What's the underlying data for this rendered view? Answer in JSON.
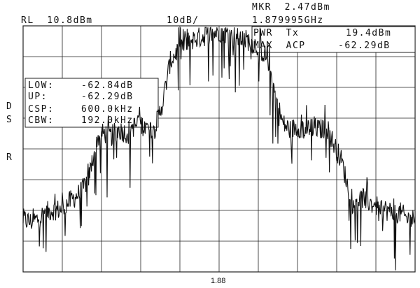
{
  "header": {
    "ref_level": "RL  10.8dBm",
    "scale": "10dB/",
    "marker_amp": "MKR  2.47dBm",
    "marker_freq": "1.879995GHz"
  },
  "panel_right": {
    "pwr_label": "PWR  Tx",
    "pwr_value": "19.4dBm",
    "acp_label": "MAX  ACP",
    "acp_value": "-62.29dB"
  },
  "panel_left": {
    "low_label": "LOW:",
    "low_value": "-62.84dB",
    "up_label": "UP:",
    "up_value": "-62.29dB",
    "csp_label": "CSP:",
    "csp_value": "600.0kHz",
    "cbw_label": "CBW:",
    "cbw_value": "192.0kHz"
  },
  "side_letters": [
    "D",
    "S",
    "R"
  ],
  "colors": {
    "trace": "#111111",
    "grid": "#222222",
    "background": "#ffffff"
  },
  "chart_data": {
    "type": "line",
    "title": "",
    "xlabel": "",
    "ylabel": "",
    "x_center_label": "1.88",
    "x_divisions": 10,
    "y_divisions": 8,
    "ylim": [
      -69.2,
      10.8
    ],
    "reference_level_dBm": 10.8,
    "scale_dB_per_div": 10,
    "grid": true,
    "series": [
      {
        "points": [
          [
            0,
            -52
          ],
          [
            3,
            -53
          ],
          [
            6,
            -52
          ],
          [
            9,
            -50
          ],
          [
            12,
            -49
          ],
          [
            15,
            -49
          ],
          [
            18,
            -47
          ],
          [
            21,
            -45
          ],
          [
            24,
            -43
          ],
          [
            27,
            -38
          ],
          [
            30,
            -26
          ],
          [
            33,
            -24
          ],
          [
            36,
            -25
          ],
          [
            39,
            -23
          ],
          [
            42,
            -24
          ],
          [
            45,
            -22
          ],
          [
            48,
            -21
          ],
          [
            51,
            -23
          ],
          [
            54,
            -22
          ],
          [
            57,
            -14
          ],
          [
            60,
            -1
          ],
          [
            64,
            4
          ],
          [
            68,
            6
          ],
          [
            72,
            7
          ],
          [
            76,
            8
          ],
          [
            80,
            9
          ],
          [
            84,
            8
          ],
          [
            88,
            7
          ],
          [
            92,
            6
          ],
          [
            96,
            4
          ],
          [
            100,
            0
          ],
          [
            103,
            -12
          ],
          [
            106,
            -21
          ],
          [
            109,
            -23
          ],
          [
            112,
            -22
          ],
          [
            115,
            -23
          ],
          [
            118,
            -22
          ],
          [
            121,
            -23
          ],
          [
            124,
            -22
          ],
          [
            127,
            -28
          ],
          [
            130,
            -33
          ],
          [
            133,
            -43
          ],
          [
            136,
            -46
          ],
          [
            139,
            -45
          ],
          [
            142,
            -47
          ],
          [
            145,
            -48
          ],
          [
            148,
            -49
          ],
          [
            151,
            -50
          ],
          [
            154,
            -50
          ],
          [
            157,
            -52
          ],
          [
            160,
            -52
          ]
        ]
      }
    ]
  }
}
